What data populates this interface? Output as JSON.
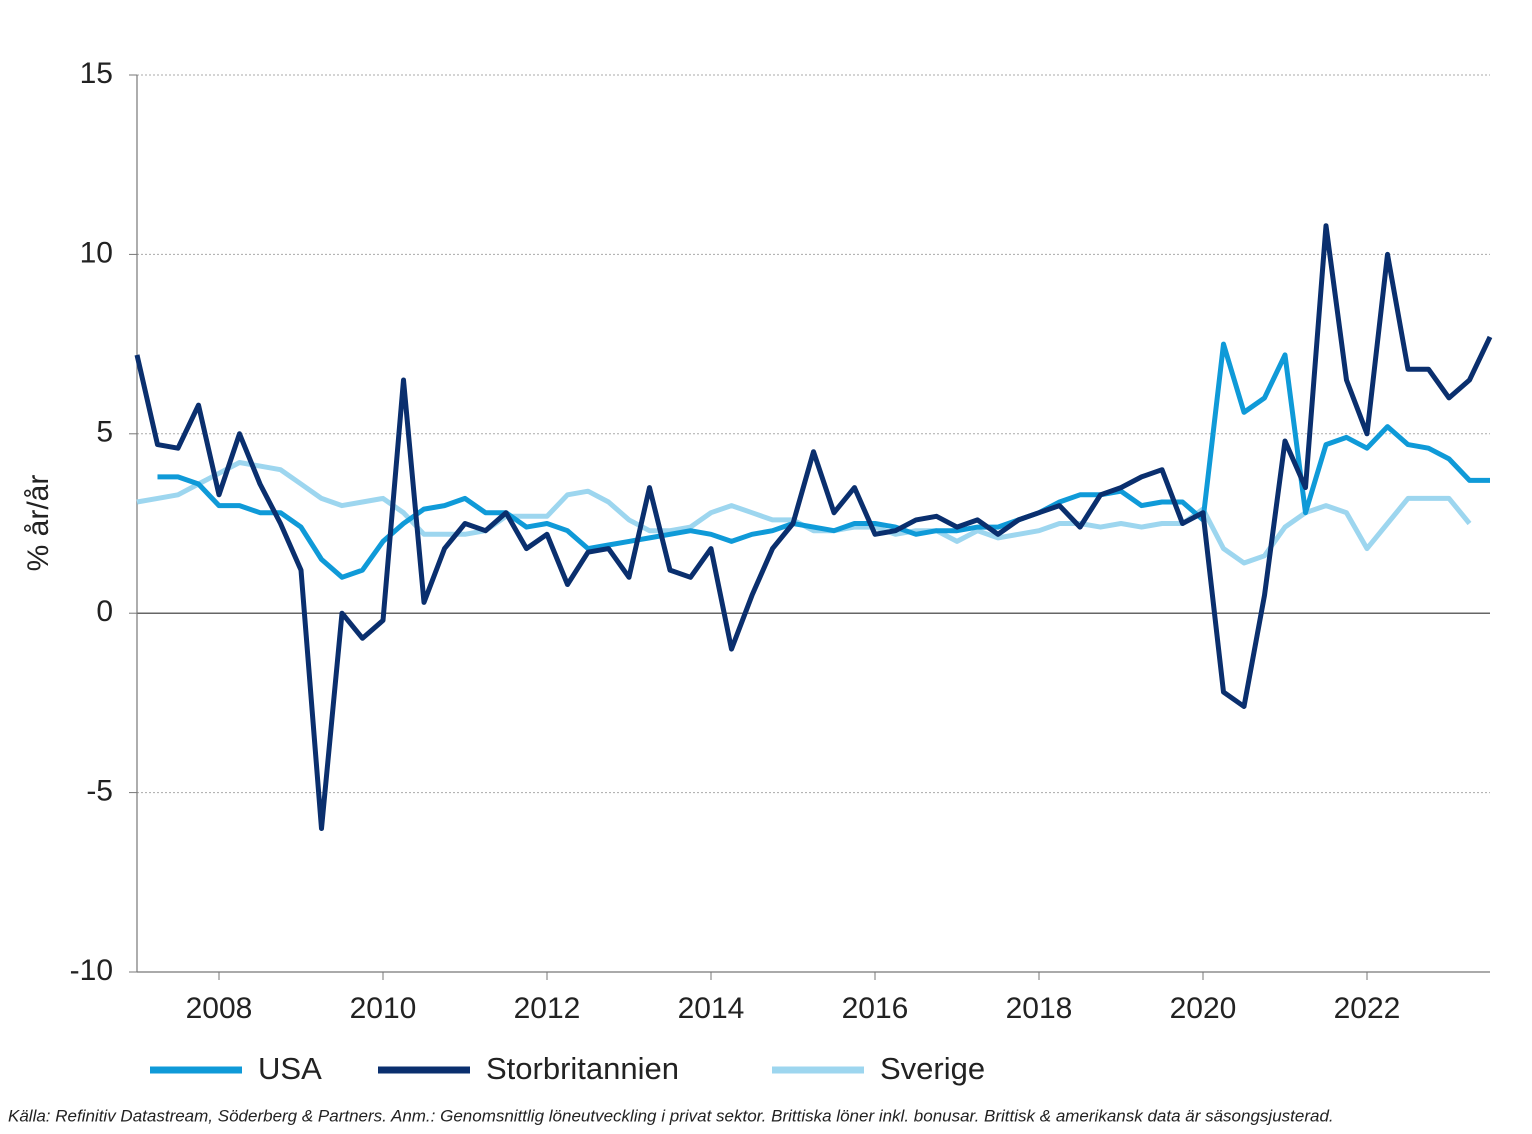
{
  "chart_data": {
    "type": "line",
    "y_label": "% år/år",
    "note": "Källa: Refinitiv Datastream, Söderberg & Partners. Anm.: Genomsnittlig löneutveckling i privat sektor. Brittiska löner inkl. bonusar. Brittisk & amerikansk data är säsongsjusterad.",
    "x": [
      2007.0,
      2007.25,
      2007.5,
      2007.75,
      2008.0,
      2008.25,
      2008.5,
      2008.75,
      2009.0,
      2009.25,
      2009.5,
      2009.75,
      2010.0,
      2010.25,
      2010.5,
      2010.75,
      2011.0,
      2011.25,
      2011.5,
      2011.75,
      2012.0,
      2012.25,
      2012.5,
      2012.75,
      2013.0,
      2013.25,
      2013.5,
      2013.75,
      2014.0,
      2014.25,
      2014.5,
      2014.75,
      2015.0,
      2015.25,
      2015.5,
      2015.75,
      2016.0,
      2016.25,
      2016.5,
      2016.75,
      2017.0,
      2017.25,
      2017.5,
      2017.75,
      2018.0,
      2018.25,
      2018.5,
      2018.75,
      2019.0,
      2019.25,
      2019.5,
      2019.75,
      2020.0,
      2020.25,
      2020.5,
      2020.75,
      2021.0,
      2021.25,
      2021.5,
      2021.75,
      2022.0,
      2022.25,
      2022.5,
      2022.75,
      2023.0,
      2023.25,
      2023.5
    ],
    "series": [
      {
        "name": "USA",
        "color": "#0f9ad8",
        "values": [
          null,
          3.8,
          3.8,
          3.6,
          3.0,
          3.0,
          2.8,
          2.8,
          2.4,
          1.5,
          1.0,
          1.2,
          2.0,
          2.5,
          2.9,
          3.0,
          3.2,
          2.8,
          2.8,
          2.4,
          2.5,
          2.3,
          1.8,
          1.9,
          2.0,
          2.1,
          2.2,
          2.3,
          2.2,
          2.0,
          2.2,
          2.3,
          2.5,
          2.4,
          2.3,
          2.5,
          2.5,
          2.4,
          2.2,
          2.3,
          2.3,
          2.4,
          2.4,
          2.6,
          2.8,
          3.1,
          3.3,
          3.3,
          3.4,
          3.0,
          3.1,
          3.1,
          2.6,
          7.5,
          5.6,
          6.0,
          7.2,
          2.8,
          4.7,
          4.9,
          4.6,
          5.2,
          4.7,
          4.6,
          4.3,
          3.7,
          3.7
        ]
      },
      {
        "name": "Storbritannien",
        "color": "#0a2f6e",
        "values": [
          7.2,
          4.7,
          4.6,
          5.8,
          3.3,
          5.0,
          3.6,
          2.5,
          1.2,
          -6.0,
          0.0,
          -0.7,
          -0.2,
          6.5,
          0.3,
          1.8,
          2.5,
          2.3,
          2.8,
          1.8,
          2.2,
          0.8,
          1.7,
          1.8,
          1.0,
          3.5,
          1.2,
          1.0,
          1.8,
          -1.0,
          0.5,
          1.8,
          2.5,
          4.5,
          2.8,
          3.5,
          2.2,
          2.3,
          2.6,
          2.7,
          2.4,
          2.6,
          2.2,
          2.6,
          2.8,
          3.0,
          2.4,
          3.3,
          3.5,
          3.8,
          4.0,
          2.5,
          2.8,
          -2.2,
          -2.6,
          0.5,
          4.8,
          3.5,
          10.8,
          6.5,
          5.0,
          10.0,
          6.8,
          6.8,
          6.0,
          6.5,
          7.7
        ]
      },
      {
        "name": "Sverige",
        "color": "#9dd6ef",
        "values": [
          3.1,
          3.2,
          3.3,
          3.6,
          3.9,
          4.2,
          4.1,
          4.0,
          3.6,
          3.2,
          3.0,
          3.1,
          3.2,
          2.8,
          2.2,
          2.2,
          2.2,
          2.3,
          2.7,
          2.7,
          2.7,
          3.3,
          3.4,
          3.1,
          2.6,
          2.3,
          2.3,
          2.4,
          2.8,
          3.0,
          2.8,
          2.6,
          2.6,
          2.3,
          2.3,
          2.4,
          2.4,
          2.2,
          2.3,
          2.3,
          2.0,
          2.3,
          2.1,
          2.2,
          2.3,
          2.5,
          2.5,
          2.4,
          2.5,
          2.4,
          2.5,
          2.5,
          2.9,
          1.8,
          1.4,
          1.6,
          2.4,
          2.8,
          3.0,
          2.8,
          1.8,
          2.5,
          3.2,
          3.2,
          3.2,
          2.5,
          null
        ]
      }
    ],
    "xlim": [
      2007,
      2023.5
    ],
    "xticks": [
      2008,
      2010,
      2012,
      2014,
      2016,
      2018,
      2020,
      2022
    ],
    "ylim": [
      -10,
      15
    ],
    "yticks": [
      -10,
      -5,
      0,
      5,
      10,
      15
    ],
    "grid": true
  }
}
